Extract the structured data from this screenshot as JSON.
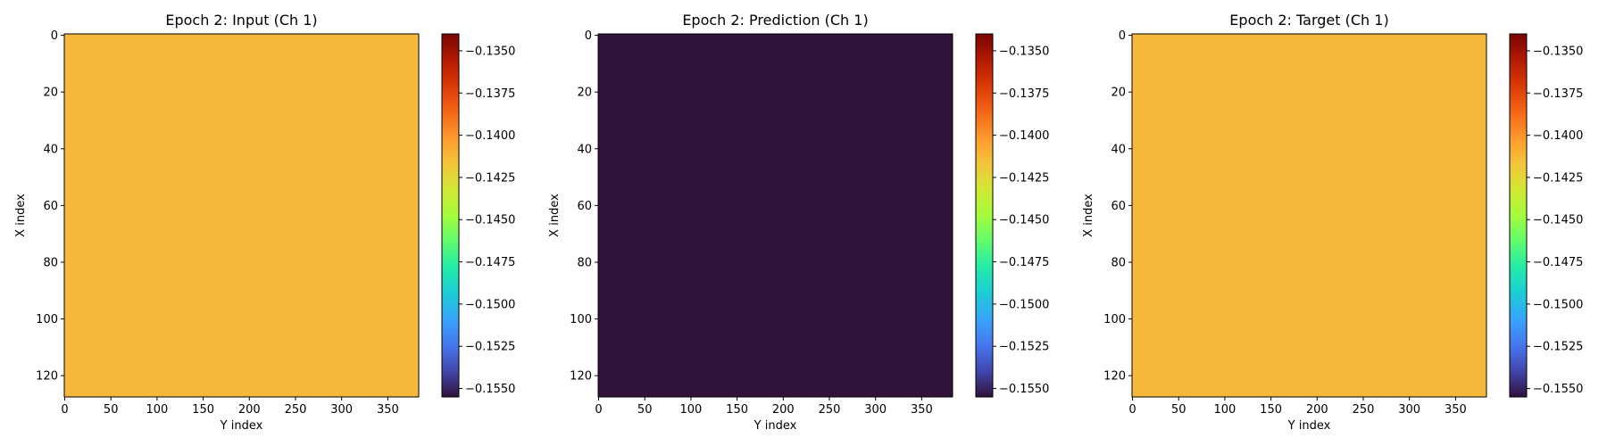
{
  "figure": {
    "colormap": "turbo",
    "panel_count": 3
  },
  "chart_data": [
    {
      "type": "heatmap",
      "title": "Epoch 2: Input (Ch 1)",
      "xlabel": "Y index",
      "ylabel": "X index",
      "x_range": [
        0,
        383
      ],
      "y_range": [
        0,
        127
      ],
      "y_inverted": true,
      "x_ticks": [
        0,
        50,
        100,
        150,
        200,
        250,
        300,
        350
      ],
      "y_ticks": [
        0,
        20,
        40,
        60,
        80,
        100,
        120
      ],
      "colorbar": {
        "vmin": -0.1555,
        "vmax": -0.134,
        "ticks": [
          "-0.1350",
          "-0.1375",
          "-0.1400",
          "-0.1425",
          "-0.1450",
          "-0.1475",
          "-0.1500",
          "-0.1525",
          "-0.1550"
        ],
        "tick_values": [
          -0.135,
          -0.1375,
          -0.14,
          -0.1425,
          -0.145,
          -0.1475,
          -0.15,
          -0.1525,
          -0.155
        ]
      }
    },
    {
      "type": "heatmap",
      "title": "Epoch 2: Prediction (Ch 1)",
      "xlabel": "Y index",
      "ylabel": "X index",
      "x_range": [
        0,
        383
      ],
      "y_range": [
        0,
        127
      ],
      "y_inverted": true,
      "x_ticks": [
        0,
        50,
        100,
        150,
        200,
        250,
        300,
        350
      ],
      "y_ticks": [
        0,
        20,
        40,
        60,
        80,
        100,
        120
      ],
      "colorbar": {
        "vmin": -0.1555,
        "vmax": -0.134,
        "ticks": [
          "-0.1350",
          "-0.1375",
          "-0.1400",
          "-0.1425",
          "-0.1450",
          "-0.1475",
          "-0.1500",
          "-0.1525",
          "-0.1550"
        ],
        "tick_values": [
          -0.135,
          -0.1375,
          -0.14,
          -0.1425,
          -0.145,
          -0.1475,
          -0.15,
          -0.1525,
          -0.155
        ]
      }
    },
    {
      "type": "heatmap",
      "title": "Epoch 2: Target (Ch 1)",
      "xlabel": "Y index",
      "ylabel": "X index",
      "x_range": [
        0,
        383
      ],
      "y_range": [
        0,
        127
      ],
      "y_inverted": true,
      "x_ticks": [
        0,
        50,
        100,
        150,
        200,
        250,
        300,
        350
      ],
      "y_ticks": [
        0,
        20,
        40,
        60,
        80,
        100,
        120
      ],
      "colorbar": {
        "vmin": -0.1555,
        "vmax": -0.134,
        "ticks": [
          "-0.1350",
          "-0.1375",
          "-0.1400",
          "-0.1425",
          "-0.1450",
          "-0.1475",
          "-0.1500",
          "-0.1525",
          "-0.1550"
        ],
        "tick_values": [
          -0.135,
          -0.1375,
          -0.14,
          -0.1425,
          -0.145,
          -0.1475,
          -0.15,
          -0.1525,
          -0.155
        ]
      }
    }
  ]
}
